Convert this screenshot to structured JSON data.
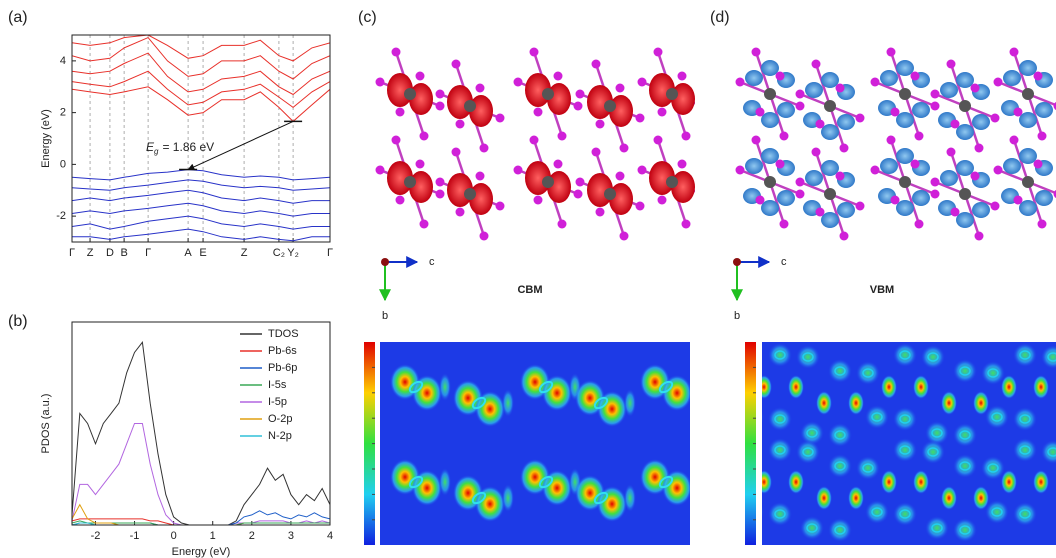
{
  "chart_data": [
    {
      "type": "line",
      "panel_label": "(a)",
      "y_label": "Energy (eV)",
      "x": [
        0,
        0.07,
        0.147,
        0.202,
        0.295,
        0.37,
        0.45,
        0.508,
        0.58,
        0.667,
        0.73,
        0.802,
        0.857,
        0.93,
        1
      ],
      "xlim": [
        0,
        1
      ],
      "xticks": [
        {
          "value": 0,
          "label": "Γ"
        },
        {
          "value": 0.07,
          "label": "Z"
        },
        {
          "value": 0.147,
          "label": "D"
        },
        {
          "value": 0.202,
          "label": "B"
        },
        {
          "value": 0.295,
          "label": "Γ"
        },
        {
          "value": 0.45,
          "label": "A"
        },
        {
          "value": 0.508,
          "label": "E"
        },
        {
          "value": 0.667,
          "label": "Z"
        },
        {
          "value": 0.802,
          "label": "C₂"
        },
        {
          "value": 0.857,
          "label": "Y₂"
        },
        {
          "value": 1,
          "label": "Γ"
        }
      ],
      "ylim": [
        -3,
        5
      ],
      "yticks": [
        -2,
        0,
        2,
        4
      ],
      "grid": true,
      "series": [
        {
          "color": "#e8302a",
          "values": [
            2.9,
            2.8,
            2.7,
            2.8,
            3.0,
            2.5,
            1.9,
            2.0,
            2.5,
            2.5,
            2.8,
            2.2,
            1.66,
            2.3,
            2.9
          ]
        },
        {
          "color": "#e8302a",
          "values": [
            3.2,
            3.1,
            3.0,
            3.2,
            3.6,
            2.9,
            2.3,
            2.4,
            2.8,
            2.9,
            3.1,
            2.6,
            2.2,
            2.8,
            3.2
          ]
        },
        {
          "color": "#e8302a",
          "values": [
            3.6,
            3.5,
            3.6,
            3.9,
            4.3,
            3.4,
            2.8,
            2.9,
            3.3,
            3.4,
            3.6,
            3.0,
            2.7,
            3.3,
            3.6
          ]
        },
        {
          "color": "#e8302a",
          "values": [
            4.2,
            4.0,
            4.1,
            4.5,
            4.9,
            4.0,
            3.4,
            3.5,
            4.0,
            4.0,
            4.2,
            3.6,
            3.3,
            3.9,
            4.2
          ]
        },
        {
          "color": "#e8302a",
          "values": [
            4.7,
            4.6,
            4.7,
            4.9,
            5.0,
            4.6,
            4.1,
            4.2,
            4.6,
            4.6,
            4.8,
            4.2,
            4.0,
            4.5,
            4.7
          ]
        },
        {
          "color": "#2832c8",
          "values": [
            -0.5,
            -0.55,
            -0.6,
            -0.5,
            -0.35,
            -0.3,
            -0.2,
            -0.25,
            -0.4,
            -0.5,
            -0.45,
            -0.5,
            -0.6,
            -0.55,
            -0.5
          ]
        },
        {
          "color": "#2832c8",
          "values": [
            -0.9,
            -0.95,
            -1.0,
            -0.9,
            -0.8,
            -0.7,
            -0.6,
            -0.65,
            -0.8,
            -0.9,
            -0.85,
            -0.9,
            -1.0,
            -0.95,
            -0.9
          ]
        },
        {
          "color": "#2832c8",
          "values": [
            -1.4,
            -1.3,
            -1.4,
            -1.3,
            -1.2,
            -1.1,
            -1.0,
            -1.1,
            -1.3,
            -1.4,
            -1.3,
            -1.4,
            -1.5,
            -1.4,
            -1.4
          ]
        },
        {
          "color": "#2832c8",
          "values": [
            -1.9,
            -1.8,
            -1.9,
            -1.8,
            -1.7,
            -1.6,
            -1.5,
            -1.6,
            -1.8,
            -1.9,
            -1.8,
            -1.9,
            -2.0,
            -1.9,
            -1.9
          ]
        },
        {
          "color": "#2832c8",
          "values": [
            -2.4,
            -2.3,
            -2.5,
            -2.4,
            -2.2,
            -2.1,
            -2.0,
            -2.1,
            -2.3,
            -2.4,
            -2.3,
            -2.4,
            -2.5,
            -2.4,
            -2.4
          ]
        },
        {
          "color": "#2832c8",
          "values": [
            -2.8,
            -2.8,
            -2.9,
            -2.8,
            -2.7,
            -2.6,
            -2.5,
            -2.6,
            -2.8,
            -2.9,
            -2.8,
            -2.9,
            -2.95,
            -2.8,
            -2.8
          ]
        }
      ],
      "annotation": {
        "symbol": "E",
        "subscript": "g",
        "text": "= 1.86 eV",
        "from": [
          0.857,
          1.66
        ],
        "to": [
          0.45,
          -0.2
        ]
      }
    },
    {
      "type": "line",
      "panel_label": "(b)",
      "x_label": "Energy (eV)",
      "y_label": "PDOS (a.u.)",
      "x": [
        -2.6,
        -2.4,
        -2.2,
        -2.0,
        -1.8,
        -1.6,
        -1.4,
        -1.2,
        -1.0,
        -0.8,
        -0.6,
        -0.4,
        -0.2,
        0,
        0.2,
        0.4,
        0.6,
        0.8,
        1.0,
        1.2,
        1.4,
        1.6,
        1.8,
        2.0,
        2.2,
        2.4,
        2.6,
        2.8,
        3.0,
        3.2,
        3.4,
        3.6,
        3.8,
        4.0
      ],
      "xlim": [
        -2.6,
        4
      ],
      "xticks": [
        -2,
        -1,
        0,
        1,
        2,
        3,
        4
      ],
      "ylim": [
        0,
        1
      ],
      "legend": "upper right",
      "series": [
        {
          "name": "I-5p",
          "color": "#b266e0",
          "values": [
            0.02,
            0.2,
            0.2,
            0.15,
            0.2,
            0.25,
            0.3,
            0.4,
            0.5,
            0.5,
            0.3,
            0.15,
            0.05,
            0.01,
            0,
            0,
            0,
            0,
            0,
            0,
            0,
            0.01,
            0.01,
            0.01,
            0.02,
            0.02,
            0.02,
            0.02,
            0.01,
            0.01,
            0.02,
            0.01,
            0.02,
            0.01
          ]
        },
        {
          "name": "TDOS",
          "color": "#333333",
          "values": [
            0.05,
            0.55,
            0.5,
            0.4,
            0.5,
            0.55,
            0.6,
            0.75,
            0.85,
            0.9,
            0.6,
            0.35,
            0.15,
            0.04,
            0.01,
            0,
            0,
            0,
            0,
            0,
            0,
            0.02,
            0.1,
            0.15,
            0.2,
            0.28,
            0.22,
            0.25,
            0.15,
            0.1,
            0.15,
            0.12,
            0.18,
            0.1
          ]
        },
        {
          "name": "Pb-6s",
          "color": "#e8302a",
          "values": [
            0.02,
            0.03,
            0.03,
            0.03,
            0.03,
            0.03,
            0.03,
            0.03,
            0.03,
            0.03,
            0.02,
            0.02,
            0.01,
            0,
            0,
            0,
            0,
            0,
            0,
            0,
            0,
            0,
            0.01,
            0.01,
            0.01,
            0.01,
            0.01,
            0.01,
            0.01,
            0.01,
            0.01,
            0.01,
            0.01,
            0.01
          ]
        },
        {
          "name": "Pb-6p",
          "color": "#1f5fc8",
          "values": [
            0,
            0.01,
            0.01,
            0.01,
            0.01,
            0.01,
            0.01,
            0.01,
            0.01,
            0.01,
            0.01,
            0,
            0,
            0,
            0,
            0,
            0,
            0,
            0,
            0,
            0,
            0.01,
            0.04,
            0.05,
            0.07,
            0.05,
            0.06,
            0.04,
            0.03,
            0.05,
            0.04,
            0.06,
            0.04,
            0.03
          ]
        },
        {
          "name": "I-5s",
          "color": "#3aa857",
          "values": [
            0.01,
            0.02,
            0.01,
            0.01,
            0.01,
            0.01,
            0.01,
            0.01,
            0.01,
            0.01,
            0.01,
            0,
            0,
            0,
            0,
            0,
            0,
            0,
            0,
            0,
            0,
            0,
            0.01,
            0.01,
            0.01,
            0.01,
            0.01,
            0.01,
            0.01,
            0.01,
            0.01,
            0.01,
            0.01,
            0.01
          ]
        },
        {
          "name": "O-2p",
          "color": "#e0a010",
          "values": [
            0.03,
            0.1,
            0.03,
            0.01,
            0.01,
            0.01,
            0,
            0,
            0,
            0,
            0,
            0,
            0,
            0,
            0,
            0,
            0,
            0,
            0,
            0,
            0,
            0,
            0,
            0,
            0,
            0,
            0,
            0,
            0,
            0,
            0,
            0,
            0,
            0
          ]
        },
        {
          "name": "N-2p",
          "color": "#30c0d8",
          "values": [
            0,
            0.01,
            0.01,
            0,
            0,
            0,
            0,
            0,
            0,
            0,
            0,
            0,
            0,
            0,
            0,
            0,
            0,
            0,
            0,
            0,
            0,
            0,
            0,
            0,
            0,
            0,
            0,
            0,
            0,
            0,
            0,
            0,
            0,
            0
          ]
        }
      ]
    }
  ],
  "structures": [
    {
      "panel_label": "(c)",
      "state": "CBM",
      "axis_a": "c",
      "axis_b": "b"
    },
    {
      "panel_label": "(d)",
      "state": "VBM",
      "axis_a": "c",
      "axis_b": "b"
    }
  ]
}
